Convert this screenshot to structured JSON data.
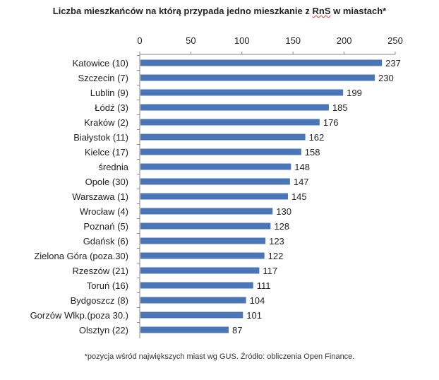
{
  "title_prefix": "Liczba mieszkańców na którą przypada jedno mieszkanie z ",
  "title_rns": "RnS",
  "title_suffix": " w miastach*",
  "footnote": "*pozycja wśród największych miast wg GUS. Źródło: obliczenia Open Finance.",
  "chart_data": {
    "type": "bar",
    "orientation": "horizontal",
    "title": "Liczba mieszkańców na którą przypada jedno mieszkanie z RnS w miastach*",
    "xlabel": "",
    "ylabel": "",
    "xlim": [
      0,
      250
    ],
    "ticks": [
      0,
      50,
      100,
      150,
      200,
      250
    ],
    "axis_position": "top",
    "grid": false,
    "legend": "none",
    "bar_color": "#4a76b7",
    "categories": [
      "Katowice (10)",
      "Szczecin (7)",
      "Lublin (9)",
      "Łódź (3)",
      "Kraków (2)",
      "Białystok (11)",
      "Kielce (17)",
      "średnia",
      "Opole (30)",
      "Warszawa (1)",
      "Wrocław (4)",
      "Poznań (5)",
      "Gdańsk (6)",
      "Zielona Góra (poza.30)",
      "Rzeszów (21)",
      "Toruń (16)",
      "Bydgoszcz (8)",
      "Gorzów Wlkp.(poza 30.)",
      "Olsztyn (22)"
    ],
    "values": [
      237,
      230,
      199,
      185,
      176,
      162,
      158,
      148,
      147,
      145,
      130,
      128,
      123,
      122,
      117,
      111,
      104,
      101,
      87
    ]
  }
}
